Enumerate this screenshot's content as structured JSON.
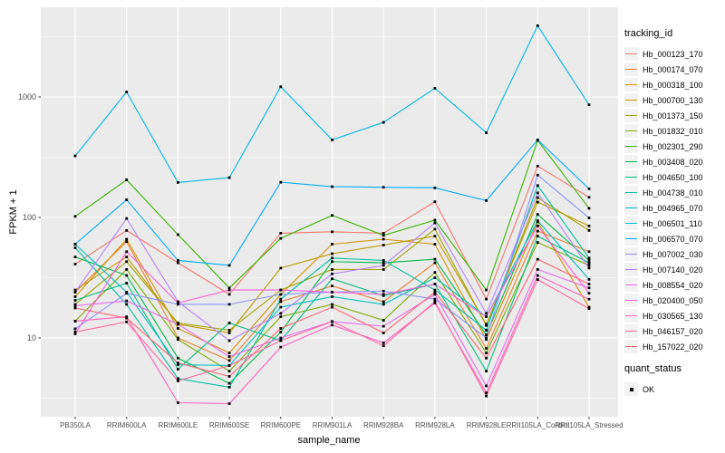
{
  "figure": {
    "background": "#FFFFFF",
    "panel_background": "#EBEBEB",
    "grid_color": "#FFFFFF",
    "axis_text_color": "#4D4D4D",
    "tick_mark_color": "#333333",
    "point_color": "#000000"
  },
  "chart_data": {
    "type": "line",
    "title": "",
    "xlabel": "sample_name",
    "ylabel": "FPKM + 1",
    "y_scale": "log10",
    "grid": true,
    "legend_position": "right",
    "legend_title": "tracking_id",
    "second_legend": {
      "title": "quant_status",
      "items": [
        {
          "label": "OK",
          "marker": "black-square-point"
        }
      ]
    },
    "y_ticks": [
      10,
      100,
      1000
    ],
    "y_tick_labels": [
      "10",
      "100",
      "1000"
    ],
    "y_minor_ticks": [
      3.162,
      31.62,
      316.2,
      3162
    ],
    "ylim": [
      2.2,
      5500
    ],
    "point_marker": "black square (quant_status OK)",
    "categories": [
      "PB350LA",
      "RRIM600LA",
      "RRIM600LE",
      "RRIM600SE",
      "RRIM600PE",
      "RRIM901LA",
      "RRIM928BA",
      "RRIM928LA",
      "RRIM928LE",
      "RRII105LA_Control",
      "RRII105LA_Stressed"
    ],
    "series": [
      {
        "name": "Hb_000123_170",
        "color": "#F8766D",
        "values": [
          41,
          78,
          42,
          23,
          74,
          76,
          74,
          135,
          21,
          267,
          147
        ]
      },
      {
        "name": "Hb_000174_070",
        "color": "#EA8331",
        "values": [
          24,
          63,
          10,
          6.5,
          20,
          27,
          20,
          42,
          8.2,
          77,
          52
        ]
      },
      {
        "name": "Hb_000318_100",
        "color": "#D89000",
        "values": [
          22,
          66,
          12,
          7.5,
          23,
          60,
          66,
          60,
          9.7,
          92,
          18
        ]
      },
      {
        "name": "Hb_000700_130",
        "color": "#C09B00",
        "values": [
          25,
          47,
          13,
          11,
          38,
          50,
          59,
          70,
          13,
          134,
          85
        ]
      },
      {
        "name": "Hb_001373_150",
        "color": "#A3A500",
        "values": [
          19,
          43,
          13.3,
          11.6,
          25,
          37,
          37,
          80,
          12.7,
          146,
          78
        ]
      },
      {
        "name": "Hb_001832_010",
        "color": "#7CAE00",
        "values": [
          13.8,
          37,
          9.7,
          5.3,
          15,
          19,
          14,
          35,
          7.5,
          62,
          40
        ]
      },
      {
        "name": "Hb_002301_290",
        "color": "#39B600",
        "values": [
          102,
          205,
          72,
          26,
          67,
          104,
          71,
          95,
          25,
          436,
          119
        ]
      },
      {
        "name": "Hb_003408_020",
        "color": "#00BB4E",
        "values": [
          47,
          33,
          6.8,
          4.2,
          11.2,
          43,
          42,
          45,
          10.6,
          106,
          44
        ]
      },
      {
        "name": "Hb_004650_100",
        "color": "#00BF7D",
        "values": [
          20.5,
          28.5,
          5.5,
          13.3,
          9.5,
          31,
          22.4,
          28,
          5.3,
          70,
          42
        ]
      },
      {
        "name": "Hb_004738_010",
        "color": "#00C1A3",
        "values": [
          56,
          19,
          4.6,
          3.9,
          21,
          46,
          44,
          25,
          11.6,
          184,
          46
        ]
      },
      {
        "name": "Hb_004965_070",
        "color": "#00BFC4",
        "values": [
          60,
          24,
          6,
          5.9,
          18,
          22,
          19,
          31.6,
          15,
          94,
          30.6
        ]
      },
      {
        "name": "Hb_006501_110",
        "color": "#00B8E7",
        "values": [
          324,
          1100,
          195,
          214,
          1216,
          440,
          615,
          1180,
          505,
          3900,
          860
        ]
      },
      {
        "name": "Hb_006570_070",
        "color": "#00ACFC",
        "values": [
          60,
          140,
          44,
          40,
          196,
          180,
          178,
          176,
          138,
          440,
          173
        ]
      },
      {
        "name": "Hb_007002_030",
        "color": "#8B93FF",
        "values": [
          11.9,
          23.5,
          19,
          19,
          23,
          24,
          24.5,
          21,
          10,
          225,
          99
        ]
      },
      {
        "name": "Hb_007140_020",
        "color": "#B983FF",
        "values": [
          24,
          98,
          20,
          9.5,
          16,
          34,
          40,
          90,
          16,
          160,
          38
        ]
      },
      {
        "name": "Hb_008554_020",
        "color": "#E76BF3",
        "values": [
          18.5,
          20.3,
          13,
          7,
          10,
          13.7,
          12.5,
          23,
          4.0,
          37,
          26
        ]
      },
      {
        "name": "Hb_020400_050",
        "color": "#FB61D7",
        "values": [
          10.8,
          52,
          19.5,
          25,
          25,
          24,
          23,
          28,
          15,
          85,
          23.5
        ]
      },
      {
        "name": "Hb_030565_130",
        "color": "#FF61C1",
        "values": [
          13.8,
          15,
          2.9,
          2.85,
          8.4,
          12.8,
          9.1,
          19.5,
          3.5,
          33,
          21
        ]
      },
      {
        "name": "Hb_046157_020",
        "color": "#FF689F",
        "values": [
          11.2,
          13.6,
          4.4,
          5.9,
          9.5,
          13.7,
          8.6,
          20,
          3.3,
          30.5,
          17.5
        ]
      },
      {
        "name": "Hb_157022_020",
        "color": "#FF6572",
        "values": [
          17.7,
          14.6,
          6.2,
          4.8,
          12,
          18,
          11,
          24,
          6.8,
          45,
          28
        ]
      }
    ]
  }
}
